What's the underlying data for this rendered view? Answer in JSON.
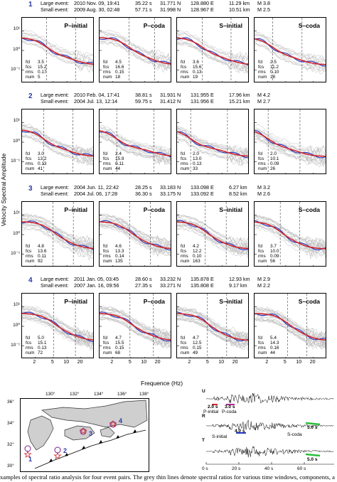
{
  "groups": [
    {
      "num": "1",
      "large": {
        "label": "Large event:",
        "date": "2010 Nov. 09, 19:41",
        "sec": "35.22 s",
        "lat": "31.771 N",
        "lon": "128.880 E",
        "depth": "11.29 km",
        "mag": "M 3.8"
      },
      "small": {
        "label": "Small event:",
        "date": "2009 Aug. 30, 02:48",
        "sec": "57.71 s",
        "lat": "31.998 N",
        "lon": "128.967 E",
        "depth": "10.51 km",
        "mag": "M 2.5"
      },
      "panels": [
        {
          "title": "P–initial",
          "fcl": "3.5",
          "fcs": "15.2",
          "rms": "0.17",
          "num": "5"
        },
        {
          "title": "P–coda",
          "fcl": "4.5",
          "fcs": "16.6",
          "rms": "0.15",
          "num": "18"
        },
        {
          "title": "S–initial",
          "fcl": "3.6",
          "fcs": "15.6",
          "rms": "0.13",
          "num": "19"
        },
        {
          "title": "S–coda",
          "fcl": "2.5",
          "fcs": "11.2",
          "rms": "0.10",
          "num": "18"
        }
      ]
    },
    {
      "num": "2",
      "large": {
        "label": "Large event:",
        "date": "2010 Feb. 04, 17:41",
        "sec": "38.81 s",
        "lat": "31.931 N",
        "lon": "131.955 E",
        "depth": "17.96 km",
        "mag": "M 4.2"
      },
      "small": {
        "label": "Small event:",
        "date": "2004 Jul. 13, 12:14",
        "sec": "59.75 s",
        "lat": "31.412 N",
        "lon": "131.956 E",
        "depth": "15.21 km",
        "mag": "M 2.7"
      },
      "panels": [
        {
          "title": "",
          "fcl": "3.0",
          "fcs": "13.2",
          "rms": "0.13",
          "num": "41"
        },
        {
          "title": "",
          "fcl": "2.4",
          "fcs": "15.9",
          "rms": "0.11",
          "num": "44"
        },
        {
          "title": "",
          "fcl": "2.0",
          "fcs": "13.0",
          "rms": "0.13",
          "num": "33"
        },
        {
          "title": "",
          "fcl": "2.0",
          "fcs": "10.1",
          "rms": "0.09",
          "num": "26"
        }
      ]
    },
    {
      "num": "3",
      "large": {
        "label": "Large event:",
        "date": "2004 Jun. 11, 22:42",
        "sec": "28.25 s",
        "lat": "33.183 N",
        "lon": "133.098 E",
        "depth": "6.27 km",
        "mag": "M 3.2"
      },
      "small": {
        "label": "Small event:",
        "date": "2004 Jul. 06, 17:28",
        "sec": "36.30 s",
        "lat": "33.175 N",
        "lon": "133.092 E",
        "depth": "8.52 km",
        "mag": "M 2.6"
      },
      "panels": [
        {
          "title": "P–initial",
          "fcl": "4.8",
          "fcs": "13.6",
          "rms": "0.11",
          "num": "92"
        },
        {
          "title": "P–coda",
          "fcl": "4.6",
          "fcs": "13.3",
          "rms": "0.14",
          "num": "135"
        },
        {
          "title": "S–initial",
          "fcl": "4.2",
          "fcs": "12.2",
          "rms": "0.10",
          "num": "163"
        },
        {
          "title": "S–coda",
          "fcl": "3.7",
          "fcs": "10.0",
          "rms": "0.09",
          "num": "56"
        }
      ]
    },
    {
      "num": "4",
      "large": {
        "label": "Large event:",
        "date": "2011 Jan. 05, 03:45",
        "sec": "28.60 s",
        "lat": "33.232 N",
        "lon": "135.878 E",
        "depth": "12.93 km",
        "mag": "M 2.9"
      },
      "small": {
        "label": "Small event:",
        "date": "2007 Jan. 16, 09:56",
        "sec": "27.35 s",
        "lat": "33.271 N",
        "lon": "135.808 E",
        "depth": "9.17 km",
        "mag": "M 2.2"
      },
      "panels": [
        {
          "title": "P–initial",
          "fcl": "5.0",
          "fcs": "15.1",
          "rms": "0.13",
          "num": "72"
        },
        {
          "title": "P–coda",
          "fcl": "4.7",
          "fcs": "15.5",
          "rms": "0.15",
          "num": "68"
        },
        {
          "title": "S–initial",
          "fcl": "4.7",
          "fcs": "12.5",
          "rms": "0.15",
          "num": "49"
        },
        {
          "title": "S–coda",
          "fcl": "5.4",
          "fcs": "14.3",
          "rms": "0.16",
          "num": "44"
        }
      ]
    }
  ],
  "stat_keys": {
    "fcl": "fcl",
    "fcs": "fcs",
    "rms": "rms",
    "num": "num"
  },
  "axes": {
    "ylabel": "Velocity Spectral Amplitude",
    "xlabel": "Frequence (Hz)",
    "yticks": [
      "10¹",
      "10⁰",
      "10⁻¹"
    ],
    "xticks": [
      "1",
      "2",
      "5",
      "10",
      "20"
    ]
  },
  "map": {
    "lon_ticks": [
      "130°",
      "132°",
      "134°",
      "136°",
      "138°"
    ],
    "lat_ticks": [
      "36°",
      "34°",
      "32°",
      "30°"
    ],
    "labels": [
      "1",
      "2",
      "3",
      "4"
    ]
  },
  "waveform": {
    "components": [
      "U",
      "R",
      "T"
    ],
    "annotations": {
      "p_win": "2.0 s",
      "p_coda_win": "3.0 s",
      "p_initial": "P-initial",
      "p_coda": "P-coda",
      "s_win": "4.0 s",
      "s_initial": "S-initial",
      "s_coda_win": "5.0 s",
      "s_coda": "S-coda",
      "t_win": "5.0 s"
    },
    "time_ticks": [
      "0 s",
      "20 s",
      "40 s",
      "60 s"
    ]
  },
  "caption": "xamples of spectral ratio analysis for four event pairs. The grey thin lines denote spectral ratios for various time windows, components, a",
  "colors": {
    "fit": "#d0262c",
    "mean": "#2436c4",
    "data": "#bdbdbd",
    "group_num": "#2a37a8",
    "star": "#d0262c",
    "circle": "#7a1f8f",
    "p_mark": "#d0262c",
    "pc_mark": "#b12a9a",
    "s_mark": "#2436c4",
    "sc_mark": "#2bbf3b"
  }
}
